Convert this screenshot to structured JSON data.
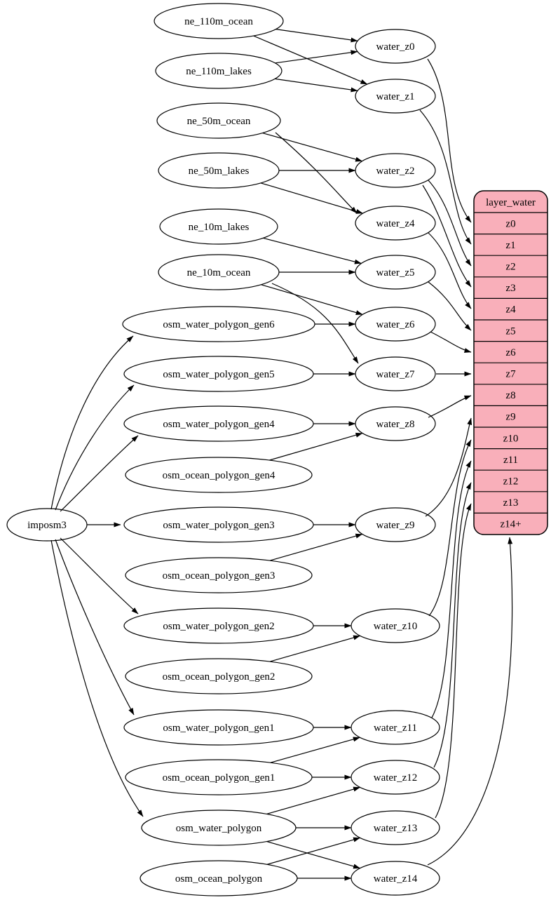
{
  "diagram": {
    "background": "#ffffff",
    "edge_color": "#000000",
    "node": {
      "fill": "#ffffff",
      "stroke": "#000000",
      "text_color": "#000000"
    },
    "record": {
      "title": "layer_water",
      "fill": "#f9afba",
      "stroke": "#000000",
      "rows": [
        "z0",
        "z1",
        "z2",
        "z3",
        "z4",
        "z5",
        "z6",
        "z7",
        "z8",
        "z9",
        "z10",
        "z11",
        "z12",
        "z13",
        "z14+"
      ]
    },
    "nodes": [
      {
        "id": "ne_110m_ocean",
        "label": "ne_110m_ocean",
        "kind": "source"
      },
      {
        "id": "ne_110m_lakes",
        "label": "ne_110m_lakes",
        "kind": "source"
      },
      {
        "id": "ne_50m_ocean",
        "label": "ne_50m_ocean",
        "kind": "source"
      },
      {
        "id": "ne_50m_lakes",
        "label": "ne_50m_lakes",
        "kind": "source"
      },
      {
        "id": "ne_10m_lakes",
        "label": "ne_10m_lakes",
        "kind": "source"
      },
      {
        "id": "ne_10m_ocean",
        "label": "ne_10m_ocean",
        "kind": "source"
      },
      {
        "id": "osm_water_polygon_gen6",
        "label": "osm_water_polygon_gen6",
        "kind": "source"
      },
      {
        "id": "osm_water_polygon_gen5",
        "label": "osm_water_polygon_gen5",
        "kind": "source"
      },
      {
        "id": "osm_water_polygon_gen4",
        "label": "osm_water_polygon_gen4",
        "kind": "source"
      },
      {
        "id": "osm_ocean_polygon_gen4",
        "label": "osm_ocean_polygon_gen4",
        "kind": "source"
      },
      {
        "id": "imposm3",
        "label": "imposm3",
        "kind": "importer"
      },
      {
        "id": "osm_water_polygon_gen3",
        "label": "osm_water_polygon_gen3",
        "kind": "source"
      },
      {
        "id": "osm_ocean_polygon_gen3",
        "label": "osm_ocean_polygon_gen3",
        "kind": "source"
      },
      {
        "id": "osm_water_polygon_gen2",
        "label": "osm_water_polygon_gen2",
        "kind": "source"
      },
      {
        "id": "osm_ocean_polygon_gen2",
        "label": "osm_ocean_polygon_gen2",
        "kind": "source"
      },
      {
        "id": "osm_water_polygon_gen1",
        "label": "osm_water_polygon_gen1",
        "kind": "source"
      },
      {
        "id": "osm_ocean_polygon_gen1",
        "label": "osm_ocean_polygon_gen1",
        "kind": "source"
      },
      {
        "id": "osm_water_polygon",
        "label": "osm_water_polygon",
        "kind": "source"
      },
      {
        "id": "osm_ocean_polygon",
        "label": "osm_ocean_polygon",
        "kind": "source"
      },
      {
        "id": "water_z0",
        "label": "water_z0",
        "kind": "intermediate"
      },
      {
        "id": "water_z1",
        "label": "water_z1",
        "kind": "intermediate"
      },
      {
        "id": "water_z2",
        "label": "water_z2",
        "kind": "intermediate"
      },
      {
        "id": "water_z4",
        "label": "water_z4",
        "kind": "intermediate"
      },
      {
        "id": "water_z5",
        "label": "water_z5",
        "kind": "intermediate"
      },
      {
        "id": "water_z6",
        "label": "water_z6",
        "kind": "intermediate"
      },
      {
        "id": "water_z7",
        "label": "water_z7",
        "kind": "intermediate"
      },
      {
        "id": "water_z8",
        "label": "water_z8",
        "kind": "intermediate"
      },
      {
        "id": "water_z9",
        "label": "water_z9",
        "kind": "intermediate"
      },
      {
        "id": "water_z10",
        "label": "water_z10",
        "kind": "intermediate"
      },
      {
        "id": "water_z11",
        "label": "water_z11",
        "kind": "intermediate"
      },
      {
        "id": "water_z12",
        "label": "water_z12",
        "kind": "intermediate"
      },
      {
        "id": "water_z13",
        "label": "water_z13",
        "kind": "intermediate"
      },
      {
        "id": "water_z14",
        "label": "water_z14",
        "kind": "intermediate"
      }
    ],
    "edges": [
      {
        "from": "ne_110m_ocean",
        "to": "water_z0"
      },
      {
        "from": "ne_110m_ocean",
        "to": "water_z1"
      },
      {
        "from": "ne_110m_lakes",
        "to": "water_z0"
      },
      {
        "from": "ne_110m_lakes",
        "to": "water_z1"
      },
      {
        "from": "ne_50m_ocean",
        "to": "water_z2"
      },
      {
        "from": "ne_50m_ocean",
        "to": "water_z4"
      },
      {
        "from": "ne_50m_lakes",
        "to": "water_z2"
      },
      {
        "from": "ne_50m_lakes",
        "to": "water_z4"
      },
      {
        "from": "ne_10m_lakes",
        "to": "water_z5"
      },
      {
        "from": "ne_10m_ocean",
        "to": "water_z5"
      },
      {
        "from": "ne_10m_ocean",
        "to": "water_z6"
      },
      {
        "from": "ne_10m_ocean",
        "to": "water_z7"
      },
      {
        "from": "osm_water_polygon_gen6",
        "to": "water_z6"
      },
      {
        "from": "osm_water_polygon_gen5",
        "to": "water_z7"
      },
      {
        "from": "osm_water_polygon_gen4",
        "to": "water_z8"
      },
      {
        "from": "osm_ocean_polygon_gen4",
        "to": "water_z8"
      },
      {
        "from": "osm_water_polygon_gen3",
        "to": "water_z9"
      },
      {
        "from": "osm_ocean_polygon_gen3",
        "to": "water_z9"
      },
      {
        "from": "osm_water_polygon_gen2",
        "to": "water_z10"
      },
      {
        "from": "osm_ocean_polygon_gen2",
        "to": "water_z10"
      },
      {
        "from": "osm_water_polygon_gen1",
        "to": "water_z11"
      },
      {
        "from": "osm_ocean_polygon_gen1",
        "to": "water_z11"
      },
      {
        "from": "osm_ocean_polygon_gen1",
        "to": "water_z12"
      },
      {
        "from": "osm_water_polygon",
        "to": "water_z12"
      },
      {
        "from": "osm_water_polygon",
        "to": "water_z13"
      },
      {
        "from": "osm_water_polygon",
        "to": "water_z14"
      },
      {
        "from": "osm_ocean_polygon",
        "to": "water_z13"
      },
      {
        "from": "osm_ocean_polygon",
        "to": "water_z14"
      },
      {
        "from": "imposm3",
        "to": "osm_water_polygon_gen6"
      },
      {
        "from": "imposm3",
        "to": "osm_water_polygon_gen5"
      },
      {
        "from": "imposm3",
        "to": "osm_water_polygon_gen4"
      },
      {
        "from": "imposm3",
        "to": "osm_water_polygon_gen3"
      },
      {
        "from": "imposm3",
        "to": "osm_water_polygon_gen2"
      },
      {
        "from": "imposm3",
        "to": "osm_water_polygon_gen1"
      },
      {
        "from": "imposm3",
        "to": "osm_water_polygon"
      },
      {
        "from": "water_z0",
        "to": "row:z0"
      },
      {
        "from": "water_z1",
        "to": "row:z1"
      },
      {
        "from": "water_z2",
        "to": "row:z2"
      },
      {
        "from": "water_z2",
        "to": "row:z3"
      },
      {
        "from": "water_z4",
        "to": "row:z4"
      },
      {
        "from": "water_z5",
        "to": "row:z5"
      },
      {
        "from": "water_z6",
        "to": "row:z6"
      },
      {
        "from": "water_z7",
        "to": "row:z7"
      },
      {
        "from": "water_z8",
        "to": "row:z8"
      },
      {
        "from": "water_z9",
        "to": "row:z9"
      },
      {
        "from": "water_z10",
        "to": "row:z10"
      },
      {
        "from": "water_z11",
        "to": "row:z11"
      },
      {
        "from": "water_z12",
        "to": "row:z12"
      },
      {
        "from": "water_z13",
        "to": "row:z13"
      },
      {
        "from": "water_z14",
        "to": "row:z14+"
      }
    ]
  }
}
